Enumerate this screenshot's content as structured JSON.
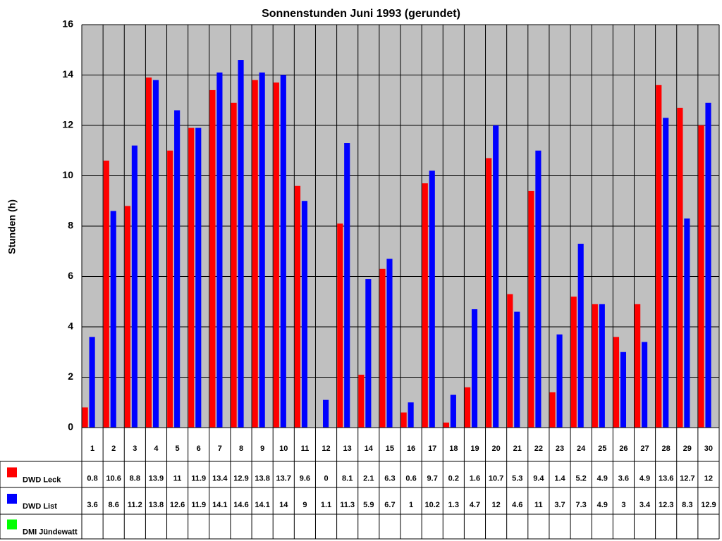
{
  "chart_data": {
    "type": "bar",
    "title": "Sonnenstunden Juni 1993 (gerundet)",
    "y_label": "Stunden (h)",
    "categories": [
      "1",
      "2",
      "3",
      "4",
      "5",
      "6",
      "7",
      "8",
      "9",
      "10",
      "11",
      "12",
      "13",
      "14",
      "15",
      "16",
      "17",
      "18",
      "19",
      "20",
      "21",
      "22",
      "23",
      "24",
      "25",
      "26",
      "27",
      "28",
      "29",
      "30"
    ],
    "series": [
      {
        "name": "DWD Leck",
        "color": "#ff0000",
        "values": [
          0.8,
          10.6,
          8.8,
          13.9,
          11,
          11.9,
          13.4,
          12.9,
          13.8,
          13.7,
          9.6,
          0,
          8.1,
          2.1,
          6.3,
          0.6,
          9.7,
          0.2,
          1.6,
          10.7,
          5.3,
          9.4,
          1.4,
          5.2,
          4.9,
          3.6,
          4.9,
          13.6,
          12.7,
          12
        ]
      },
      {
        "name": "DWD List",
        "color": "#0000ff",
        "values": [
          3.6,
          8.6,
          11.2,
          13.8,
          12.6,
          11.9,
          14.1,
          14.6,
          14.1,
          14,
          9,
          1.1,
          11.3,
          5.9,
          6.7,
          1,
          10.2,
          1.3,
          4.7,
          12,
          4.6,
          11,
          3.7,
          7.3,
          4.9,
          3,
          3.4,
          12.3,
          8.3,
          12.9
        ]
      },
      {
        "name": "DMI Jündewatt",
        "color": "#00ff00",
        "values": [
          null,
          null,
          null,
          null,
          null,
          null,
          null,
          null,
          null,
          null,
          null,
          null,
          null,
          null,
          null,
          null,
          null,
          null,
          null,
          null,
          null,
          null,
          null,
          null,
          null,
          null,
          null,
          null,
          null,
          null
        ]
      }
    ],
    "ylim": [
      0,
      16
    ],
    "yticks": [
      0,
      2,
      4,
      6,
      8,
      10,
      12,
      14,
      16
    ],
    "grid": true
  }
}
